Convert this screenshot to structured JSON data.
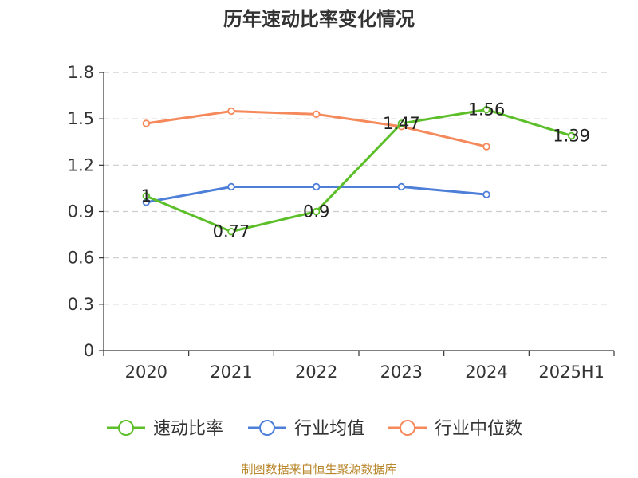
{
  "title": "历年速动比率变化情况",
  "source": "制图数据来自恒生聚源数据库",
  "chart_data": {
    "type": "line",
    "title": "历年速动比率变化情况",
    "xlabel": "",
    "ylabel": "",
    "categories": [
      "2020",
      "2021",
      "2022",
      "2023",
      "2024",
      "2025H1"
    ],
    "ylim": [
      0,
      1.8
    ],
    "yticks": [
      "0",
      "0.3",
      "0.6",
      "0.9",
      "1.2",
      "1.5",
      "1.8"
    ],
    "grid": true,
    "legend_position": "bottom",
    "series": [
      {
        "name": "速动比率",
        "color": "#5cbf2a",
        "values": [
          1,
          0.77,
          0.9,
          1.47,
          1.56,
          1.39
        ],
        "labels": [
          "1",
          "0.77",
          "0.9",
          "1.47",
          "1.56",
          "1.39"
        ]
      },
      {
        "name": "行业均值",
        "color": "#4e7fd8",
        "values": [
          0.96,
          1.06,
          1.06,
          1.06,
          1.01,
          null
        ]
      },
      {
        "name": "行业中位数",
        "color": "#f5895b",
        "values": [
          1.47,
          1.55,
          1.53,
          1.45,
          1.32,
          null
        ]
      }
    ]
  }
}
